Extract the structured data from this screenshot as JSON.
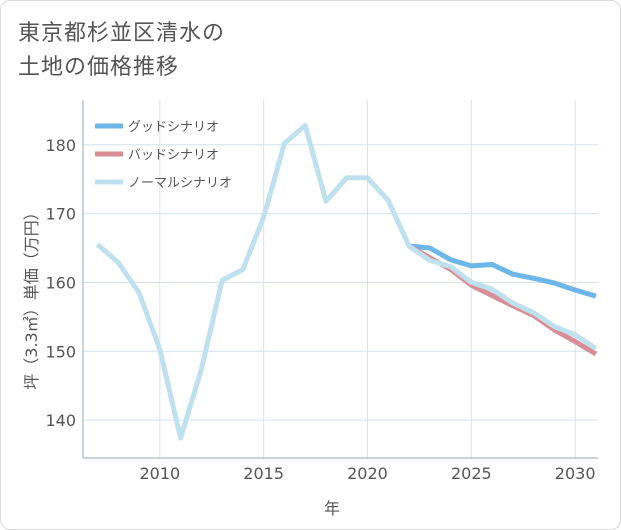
{
  "chart_data": {
    "type": "line",
    "title_lines": [
      "東京都杉並区清水の",
      "土地の価格推移"
    ],
    "xlabel": "年",
    "ylabel": "坪（3.3㎡）単価（万円）",
    "xlim": [
      2006.3,
      2031.1
    ],
    "ylim": [
      134.5,
      186.5
    ],
    "x_ticks": [
      2010,
      2015,
      2020,
      2025,
      2030
    ],
    "y_ticks": [
      140,
      150,
      160,
      170,
      180
    ],
    "grid": true,
    "legend_position": "top-left",
    "series": [
      {
        "name": "グッドシナリオ",
        "color": "#6cb6ea",
        "x": [
          2022,
          2023,
          2024,
          2025,
          2026,
          2027,
          2028,
          2029,
          2030,
          2031
        ],
        "y": [
          165.3,
          165.0,
          163.3,
          162.4,
          162.6,
          161.2,
          160.6,
          159.9,
          158.9,
          158.0
        ]
      },
      {
        "name": "バッドシナリオ",
        "color": "#d98e96",
        "x": [
          2022,
          2023,
          2024,
          2025,
          2026,
          2027,
          2028,
          2029,
          2030,
          2031
        ],
        "y": [
          165.3,
          163.6,
          161.9,
          159.6,
          158.1,
          156.6,
          155.2,
          153.1,
          151.4,
          149.6
        ]
      },
      {
        "name": "ノーマルシナリオ",
        "color": "#bfe1ef",
        "x": [
          2007,
          2008,
          2009,
          2010,
          2011,
          2012,
          2013,
          2014,
          2015,
          2016,
          2017,
          2018,
          2019,
          2020,
          2021,
          2022,
          2023,
          2024,
          2025,
          2026,
          2027,
          2028,
          2029,
          2030,
          2031
        ],
        "y": [
          165.5,
          162.9,
          158.5,
          150.3,
          137.4,
          147.4,
          160.3,
          161.9,
          169.5,
          180.2,
          182.8,
          171.8,
          175.2,
          175.2,
          171.9,
          165.3,
          163.2,
          162.3,
          160.0,
          159.0,
          157.0,
          155.6,
          153.6,
          152.4,
          150.4
        ]
      }
    ]
  }
}
